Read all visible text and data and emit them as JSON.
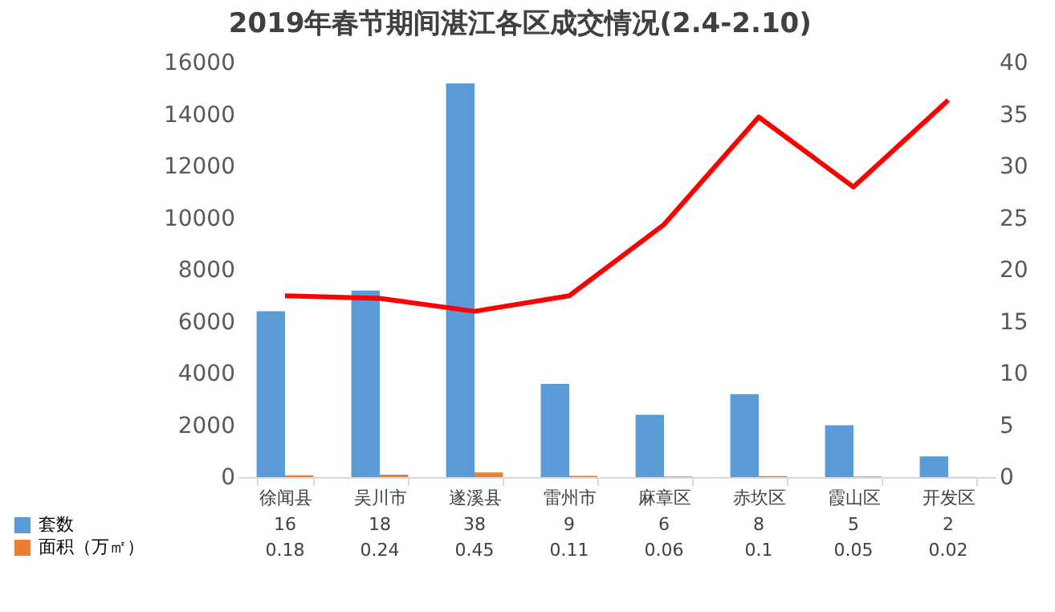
{
  "chart_data": {
    "type": "bar",
    "title": "2019年春节期间湛江各区成交情况(2.4-2.10)",
    "categories": [
      "徐闻县",
      "吴川市",
      "遂溪县",
      "雷州市",
      "麻章区",
      "赤坎区",
      "霞山区",
      "开发区"
    ],
    "series": [
      {
        "name": "套数",
        "color": "#5b9bd5",
        "axis": "y2",
        "values": [
          16,
          18,
          38,
          9,
          6,
          8,
          5,
          2
        ],
        "value_labels": [
          "16",
          "18",
          "38",
          "9",
          "6",
          "8",
          "5",
          "2"
        ]
      },
      {
        "name": "面积（万㎡）",
        "color": "#ed7d31",
        "axis": "y2",
        "values": [
          0.18,
          0.24,
          0.45,
          0.11,
          0.06,
          0.1,
          0.05,
          0.02
        ],
        "value_labels": [
          "0.18",
          "0.24",
          "0.45",
          "0.11",
          "0.06",
          "0.1",
          "0.05",
          "0.02"
        ]
      },
      {
        "type": "line",
        "color": "#ff0000",
        "axis": "y",
        "values": [
          7000,
          6900,
          6400,
          7000,
          9750,
          13900,
          11200,
          14550
        ]
      }
    ],
    "ylim": [
      0,
      16000
    ],
    "yticks": [
      0,
      2000,
      4000,
      6000,
      8000,
      10000,
      12000,
      14000,
      16000
    ],
    "y2lim": [
      0,
      40
    ],
    "y2ticks": [
      0,
      5,
      10,
      15,
      20,
      25,
      30,
      35,
      40
    ],
    "legend": "bottom left",
    "grid": false
  }
}
